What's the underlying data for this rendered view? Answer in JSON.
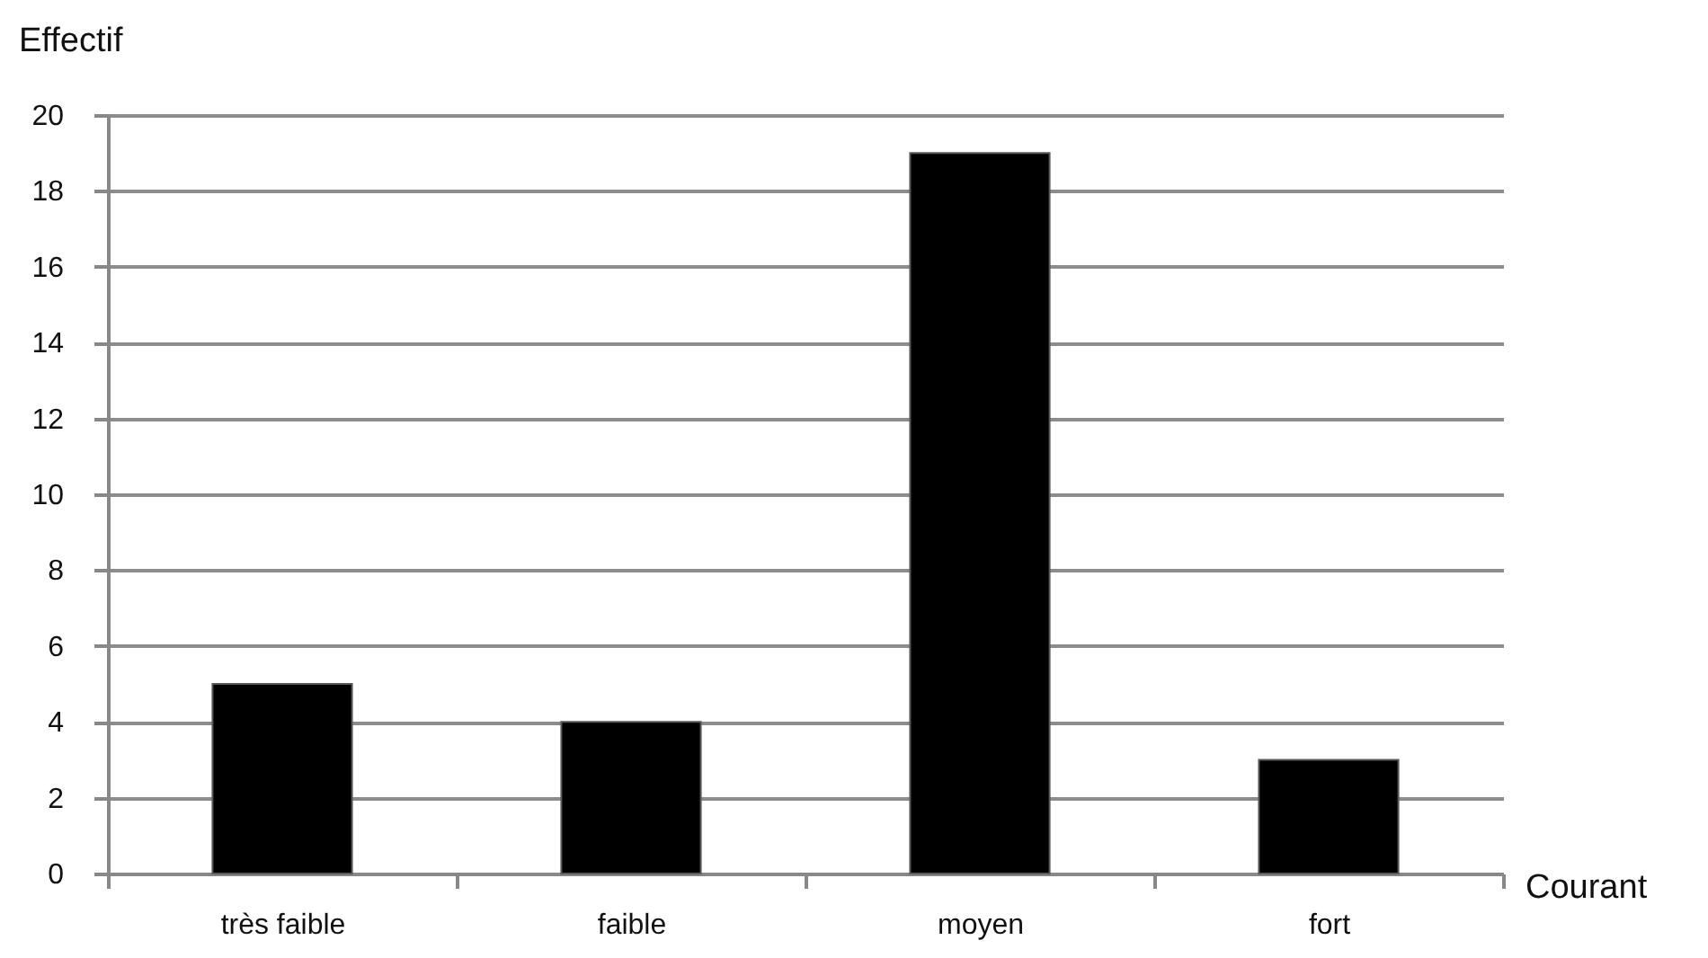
{
  "chart_data": {
    "type": "bar",
    "xlabel": "Courant",
    "ylabel": "Effectif",
    "categories": [
      "très faible",
      "faible",
      "moyen",
      "fort"
    ],
    "values": [
      5,
      4,
      19,
      3
    ],
    "color": "#000000",
    "ylim": [
      0,
      20
    ],
    "yticks": [
      0,
      2,
      4,
      6,
      8,
      10,
      12,
      14,
      16,
      18,
      20
    ],
    "grid": "y"
  }
}
